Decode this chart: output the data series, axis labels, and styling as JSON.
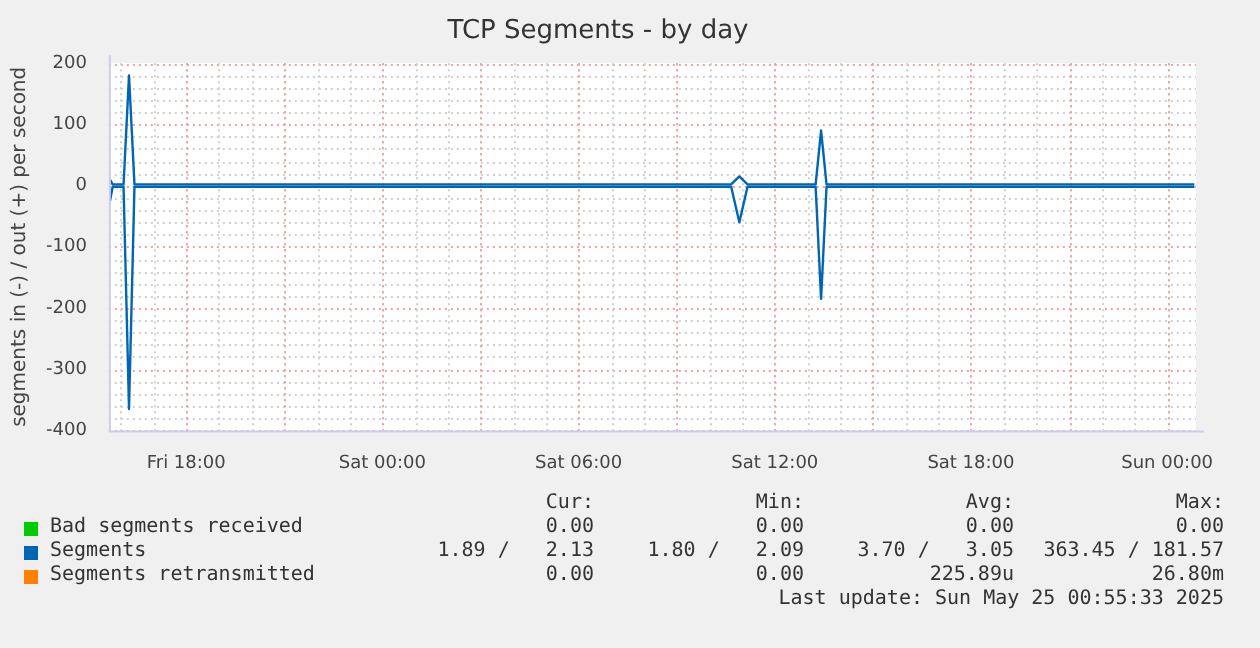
{
  "chart_data": {
    "type": "line",
    "title": "TCP Segments - by day",
    "ylabel": "segments in (-) / out (+) per second",
    "xlim": [
      "2025-05-23T15:38",
      "2025-05-25T00:53"
    ],
    "xticks": [
      {
        "value": "2025-05-23T18:00",
        "label": "Fri 18:00"
      },
      {
        "value": "2025-05-23T21:00",
        "label": null
      },
      {
        "value": "2025-05-24T00:00",
        "label": "Sat 00:00"
      },
      {
        "value": "2025-05-24T03:00",
        "label": null
      },
      {
        "value": "2025-05-24T06:00",
        "label": "Sat 06:00"
      },
      {
        "value": "2025-05-24T09:00",
        "label": null
      },
      {
        "value": "2025-05-24T12:00",
        "label": "Sat 12:00"
      },
      {
        "value": "2025-05-24T15:00",
        "label": null
      },
      {
        "value": "2025-05-24T18:00",
        "label": "Sat 18:00"
      },
      {
        "value": "2025-05-24T21:00",
        "label": null
      },
      {
        "value": "2025-05-25T00:00",
        "label": "Sun 00:00"
      }
    ],
    "ylim": [
      -400,
      200
    ],
    "yticks": [
      -400,
      -300,
      -200,
      -100,
      0,
      100,
      200
    ],
    "grid": true,
    "legend": "bottom",
    "marker": "none",
    "line_style": "solid",
    "series": [
      {
        "name": "Bad segments received",
        "color": "#00cc00"
      },
      {
        "color": "#0066b3",
        "x": [
          "2025-05-23T15:40",
          "2025-05-23T15:45",
          "2025-05-23T16:05",
          "2025-05-23T16:15",
          "2025-05-23T16:25",
          "2025-05-24T10:40",
          "2025-05-24T10:55",
          "2025-05-24T11:10",
          "2025-05-24T13:15",
          "2025-05-24T13:25",
          "2025-05-24T13:35",
          "2025-05-25T00:50"
        ],
        "values": [
          -25,
          -2,
          -2,
          -365,
          -2,
          -2,
          -60,
          -2,
          -2,
          -185,
          -2,
          -2
        ]
      },
      {
        "name": "Segments",
        "color": "#0066b3",
        "x": [
          "2025-05-23T15:40",
          "2025-05-23T15:45",
          "2025-05-23T16:05",
          "2025-05-23T16:15",
          "2025-05-23T16:25",
          "2025-05-24T10:40",
          "2025-05-24T10:55",
          "2025-05-24T11:10",
          "2025-05-24T13:15",
          "2025-05-24T13:25",
          "2025-05-24T13:35",
          "2025-05-25T00:50"
        ],
        "values": [
          10,
          2,
          2,
          180,
          2,
          2,
          15,
          2,
          2,
          90,
          2,
          2
        ]
      },
      {
        "name": "Segments retransmitted",
        "color": "#ff8000"
      }
    ],
    "annotations": [
      "Cur:",
      "Min:",
      "Avg:",
      "Max:",
      "0.00",
      "0.00",
      "0.00",
      "0.00",
      "1.89 /   2.13",
      "1.80 /   2.09",
      "3.70 /   3.05",
      "363.45 / 181.57",
      "0.00",
      "0.00",
      "225.89u",
      "26.80m",
      "Last update: Sun May 25 00:55:33 2025"
    ]
  }
}
